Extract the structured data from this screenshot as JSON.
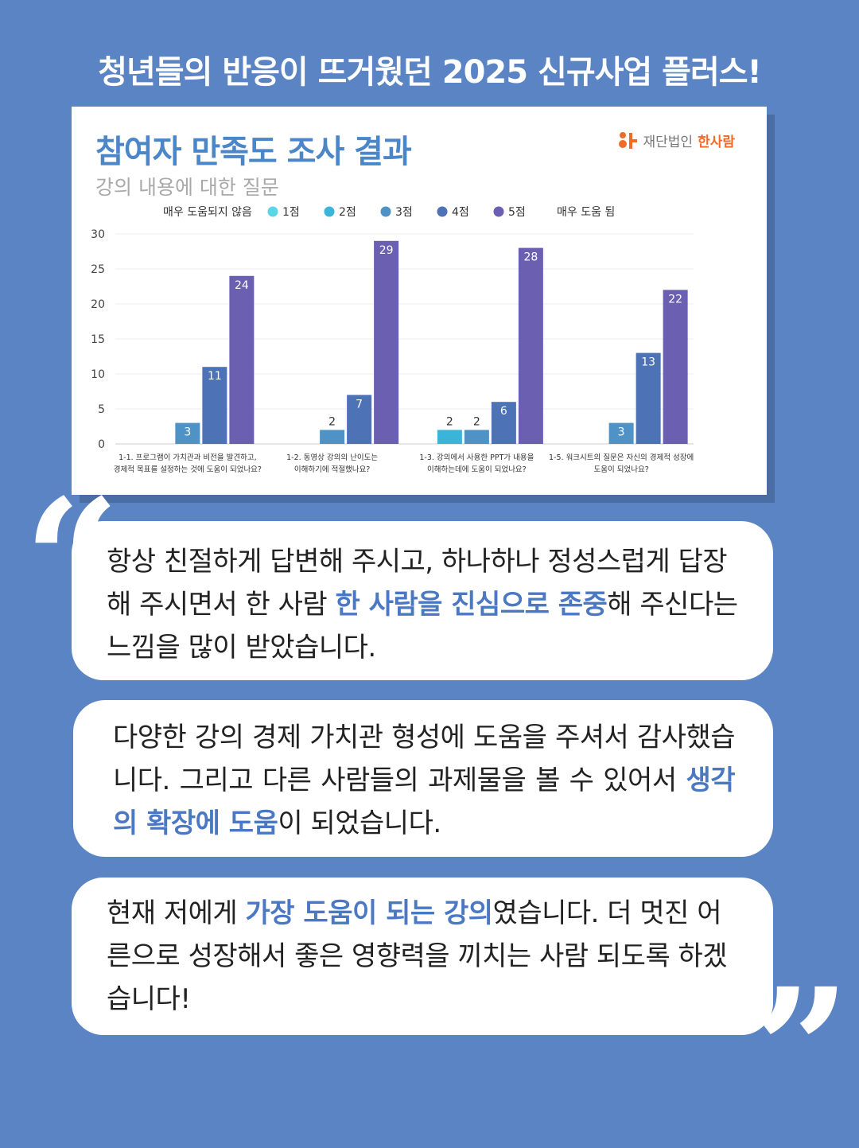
{
  "headline": "청년들의 반응이 뜨거웠던 2025 신규사업 플러스!",
  "logo": {
    "prefix": "재단법인",
    "brand": "한사람",
    "color": "#f06a2a"
  },
  "chart_data": {
    "type": "bar",
    "title": "참여자 만족도 조사 결과",
    "subtitle": "강의 내용에 대한 질문",
    "legend": {
      "left_label": "매우 도움되지 않음",
      "right_label": "매우 도움 됨",
      "placement": "top"
    },
    "ylim": [
      0,
      30
    ],
    "yticks": [
      0,
      5,
      10,
      15,
      20,
      25,
      30
    ],
    "categories": [
      [
        "1-1. 프로그램이 가치관과 비전을 발견하고,",
        "경제적 목표를 설정하는 것에 도움이 되었나요?"
      ],
      [
        "1-2. 동영상 강의의 난이도는",
        "이해하기에 적절했나요?"
      ],
      [
        "1-3. 강의에서 사용한 PPT가 내용을",
        "이해하는데에 도움이 되었나요?"
      ],
      [
        "1-5. 워크시트의 질문은 자신의 경제적 성장에",
        "도움이 되었나요?"
      ]
    ],
    "series": [
      {
        "name": "1점",
        "color": "#5ad6e6",
        "values": [
          0,
          0,
          0,
          0
        ]
      },
      {
        "name": "2점",
        "color": "#3ab4d8",
        "values": [
          0,
          0,
          2,
          0
        ]
      },
      {
        "name": "3점",
        "color": "#4e92c6",
        "values": [
          3,
          2,
          2,
          3
        ]
      },
      {
        "name": "4점",
        "color": "#4e72b6",
        "values": [
          11,
          7,
          6,
          13
        ]
      },
      {
        "name": "5점",
        "color": "#6a5fb0",
        "values": [
          24,
          29,
          28,
          22
        ]
      }
    ],
    "grid": true
  },
  "quotes": [
    {
      "before": "항상 친절하게 답변해 주시고, 하나하나 정성스럽게 답장해 주시면서 한 사람 ",
      "highlight": "한 사람을 진심으로 존중",
      "after": "해 주신다는 느낌을 많이 받았습니다."
    },
    {
      "before": "다양한 강의 경제 가치관 형성에 도움을 주셔서 감사했습니다. 그리고 다른 사람들의 과제물을 볼 수 있어서 ",
      "highlight": "생각의 확장에 도움",
      "after": "이 되었습니다."
    },
    {
      "before": "현재 저에게 ",
      "highlight": "가장 도움이 되는 강의",
      "after": "였습니다. 더 멋진 어른으로 성장해서 좋은 영향력을 끼치는 사람 되도록 하겠습니다!"
    }
  ]
}
